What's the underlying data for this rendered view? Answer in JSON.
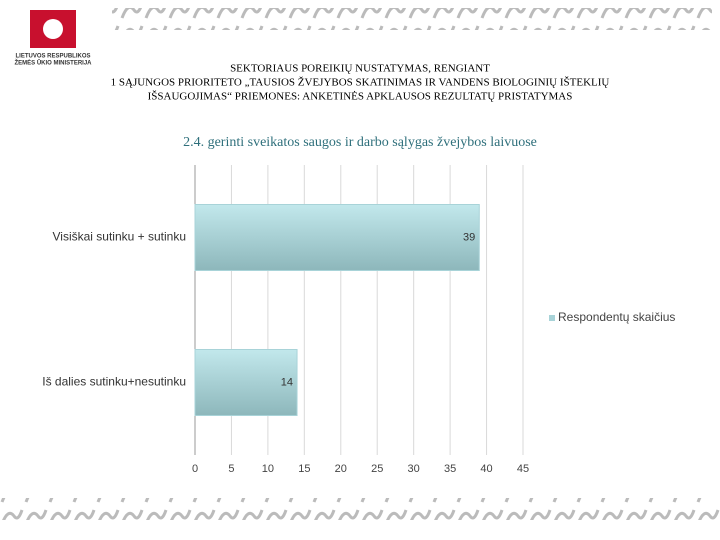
{
  "header": {
    "logo_text": [
      "LIETUVOS RESPUBLIKOS",
      "ŽEMĖS ŪKIO MINISTERIJA"
    ],
    "title": [
      "SEKTORIAUS POREIKIŲ NUSTATYMAS, RENGIANT",
      "1 SĄJUNGOS PRIORITETO „TAUSIOS ŽVEJYBOS SKATINIMAS IR VANDENS BIOLOGINIŲ IŠTEKLIŲ",
      "IŠSAUGOJIMAS“ PRIEMONES: ANKETINĖS APKLAUSOS REZULTATŲ PRISTATYMAS"
    ]
  },
  "chart_data": {
    "type": "hbar",
    "title": "2.4. gerinti sveikatos saugos ir darbo sąlygas žvejybos laivuose",
    "categories": [
      "Visiškai sutinku + sutinku",
      "Iš dalies sutinku+nesutinku"
    ],
    "series": [
      {
        "name": "Respondentų skaičius",
        "color": "#a8d3d8",
        "values": [
          39,
          14
        ]
      }
    ],
    "xlim": [
      0,
      45
    ],
    "xticks": [
      0,
      5,
      10,
      15,
      20,
      25,
      30,
      35,
      40,
      45
    ],
    "grid": true,
    "legend": "right"
  }
}
